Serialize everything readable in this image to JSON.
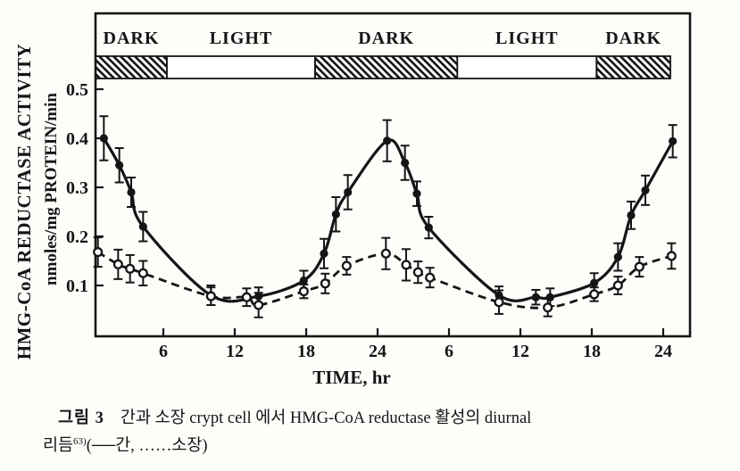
{
  "figure": {
    "band_label_row": [
      "DARK",
      "LIGHT",
      "DARK",
      "LIGHT",
      "DARK"
    ],
    "x_axis_title": "TIME, hr",
    "y_axis_title_outer": "HMG-CoA REDUCTASE ACTIVITY",
    "y_axis_title_inner": "nmoles/mg PROTEIN/min",
    "ink_color": "#151515",
    "paper_color": "#fdfdfa"
  },
  "caption": {
    "figure_label": "그림 3",
    "line1": "간과 소장 crypt cell 에서 HMG-CoA reductase 활성의 diurnal",
    "line2_prefix": "리듬",
    "line2_ref": "63)",
    "line2_legend": "(──간, ……소장)"
  },
  "chart_data": {
    "type": "line",
    "title": "",
    "xlabel": "TIME, hr",
    "ylabel": "HMG-CoA REDUCTASE ACTIVITY, nmoles/mg PROTEIN/min",
    "x_axis_hours_range": [
      0.3,
      50.3
    ],
    "ylim": [
      0,
      0.65
    ],
    "grid": false,
    "x_ticks": [
      {
        "hour": 6,
        "label": "6"
      },
      {
        "hour": 12,
        "label": "12"
      },
      {
        "hour": 18,
        "label": "18"
      },
      {
        "hour": 24,
        "label": "24"
      },
      {
        "hour": 30,
        "label": "6"
      },
      {
        "hour": 36,
        "label": "12"
      },
      {
        "hour": 42,
        "label": "18"
      },
      {
        "hour": 48,
        "label": "24"
      }
    ],
    "y_ticks": [
      {
        "value": 0.1,
        "label": "0.1"
      },
      {
        "value": 0.2,
        "label": "0.2"
      },
      {
        "value": 0.3,
        "label": "0.3"
      },
      {
        "value": 0.4,
        "label": "0.4"
      },
      {
        "value": 0.5,
        "label": "0.5"
      }
    ],
    "light_dark_bands": [
      {
        "label": "DARK",
        "from_hour": 0.3,
        "to_hour": 6.3,
        "hatched": true
      },
      {
        "label": "LIGHT",
        "from_hour": 6.3,
        "to_hour": 18.75,
        "hatched": false
      },
      {
        "label": "DARK",
        "from_hour": 18.75,
        "to_hour": 30.7,
        "hatched": true
      },
      {
        "label": "LIGHT",
        "from_hour": 30.7,
        "to_hour": 42.4,
        "hatched": false
      },
      {
        "label": "DARK",
        "from_hour": 42.4,
        "to_hour": 48.6,
        "hatched": true
      }
    ],
    "point_format": [
      "hour",
      "value_nmoles_per_mg_protein_per_min",
      "error_bar_half_height"
    ],
    "series": [
      {
        "name": "간 (liver)",
        "line": "solid",
        "marker": "filled-circle",
        "points": [
          [
            1.0,
            0.4,
            0.045
          ],
          [
            2.3,
            0.345,
            0.035
          ],
          [
            3.3,
            0.29,
            0.03
          ],
          [
            4.3,
            0.22,
            0.03
          ],
          [
            10.0,
            0.08,
            0.02
          ],
          [
            14.0,
            0.078,
            0.018
          ],
          [
            17.8,
            0.11,
            0.02
          ],
          [
            19.5,
            0.165,
            0.03
          ],
          [
            20.5,
            0.245,
            0.035
          ],
          [
            21.5,
            0.29,
            0.035
          ],
          [
            24.8,
            0.395,
            0.042
          ],
          [
            26.3,
            0.35,
            0.035
          ],
          [
            27.3,
            0.287,
            0.025
          ],
          [
            28.3,
            0.218,
            0.022
          ],
          [
            34.2,
            0.08,
            0.018
          ],
          [
            37.3,
            0.076,
            0.015
          ],
          [
            38.5,
            0.076,
            0.018
          ],
          [
            42.2,
            0.105,
            0.02
          ],
          [
            44.2,
            0.158,
            0.028
          ],
          [
            45.3,
            0.243,
            0.028
          ],
          [
            46.5,
            0.294,
            0.03
          ],
          [
            48.8,
            0.394,
            0.033
          ]
        ]
      },
      {
        "name": "소장 (small intestine crypt cell)",
        "line": "dashed",
        "marker": "open-circle",
        "points": [
          [
            0.5,
            0.168,
            0.03
          ],
          [
            2.2,
            0.143,
            0.03
          ],
          [
            3.2,
            0.134,
            0.028
          ],
          [
            4.3,
            0.125,
            0.025
          ],
          [
            10.0,
            0.078,
            0.018
          ],
          [
            13.0,
            0.076,
            0.018
          ],
          [
            14.0,
            0.06,
            0.025
          ],
          [
            17.8,
            0.088,
            0.014
          ],
          [
            19.6,
            0.104,
            0.02
          ],
          [
            21.4,
            0.14,
            0.018
          ],
          [
            24.7,
            0.165,
            0.032
          ],
          [
            26.4,
            0.142,
            0.032
          ],
          [
            27.4,
            0.127,
            0.022
          ],
          [
            28.4,
            0.116,
            0.02
          ],
          [
            34.2,
            0.066,
            0.024
          ],
          [
            38.3,
            0.055,
            0.018
          ],
          [
            42.2,
            0.082,
            0.014
          ],
          [
            44.2,
            0.1,
            0.018
          ],
          [
            46.0,
            0.138,
            0.02
          ],
          [
            48.7,
            0.16,
            0.026
          ]
        ]
      }
    ]
  }
}
